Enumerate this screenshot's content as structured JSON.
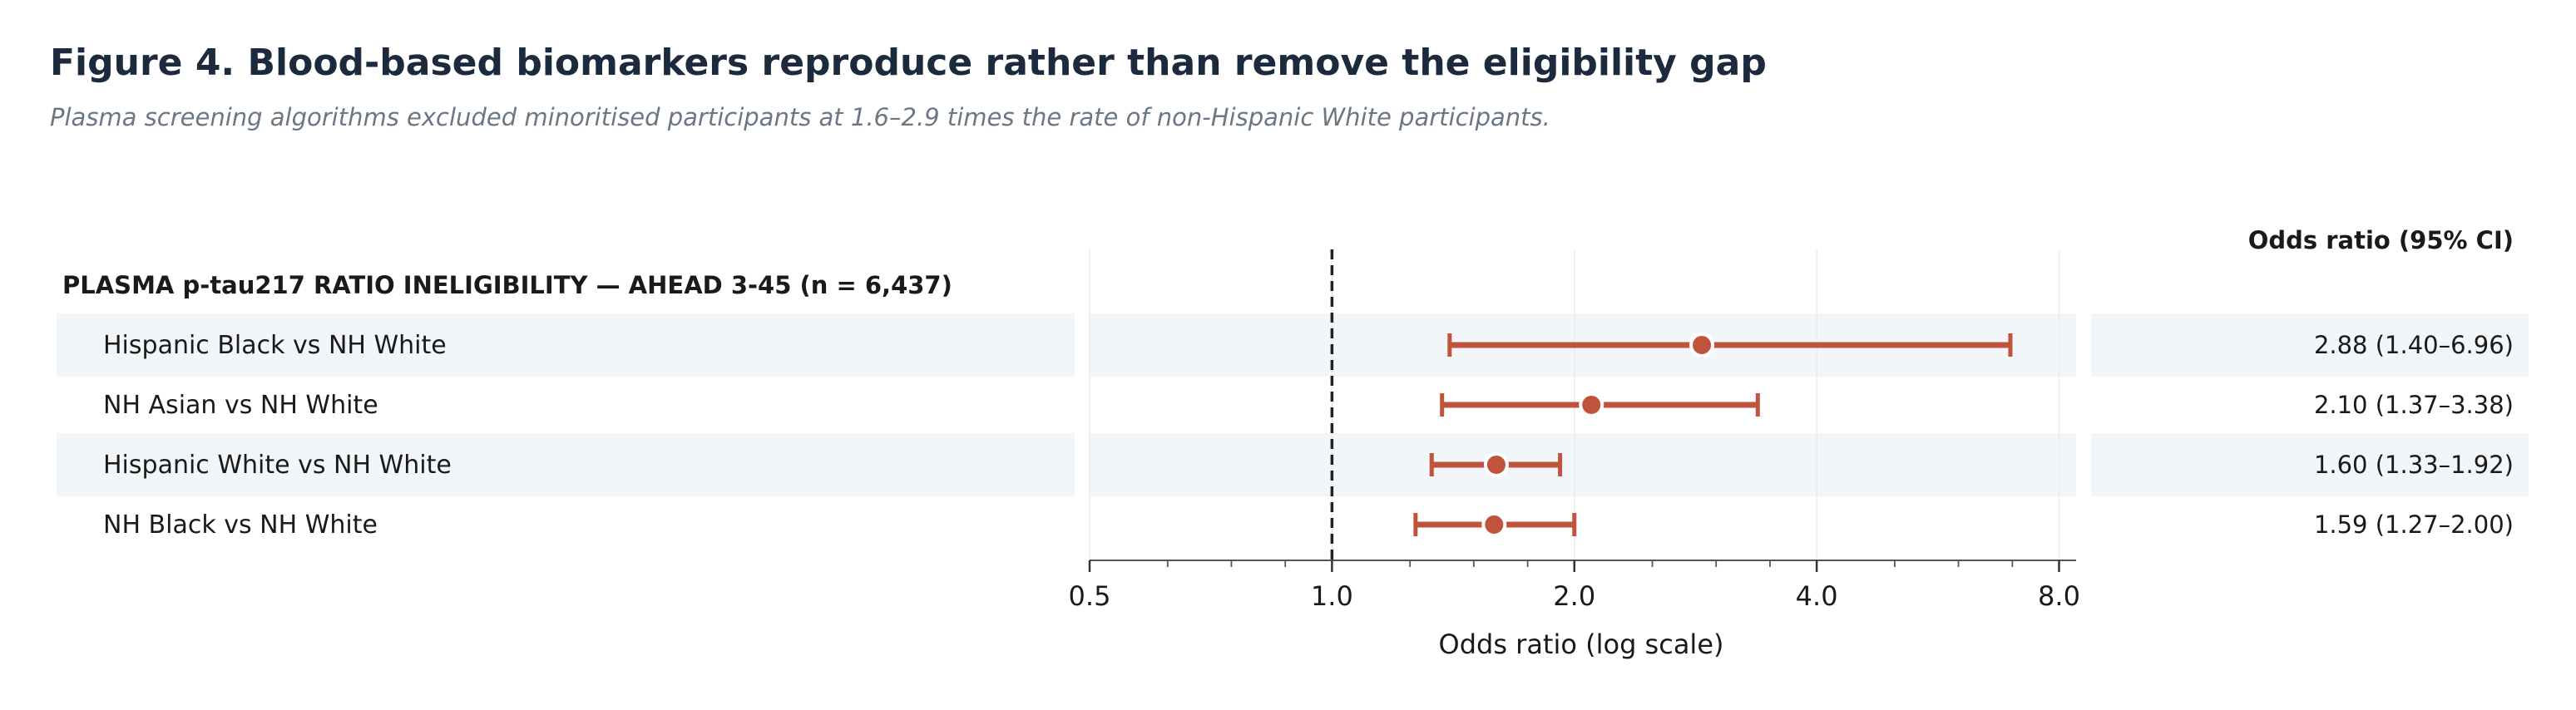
{
  "figure": {
    "title": "Figure 4.  Blood-based biomarkers reproduce rather than remove the eligibility gap",
    "subtitle": "Plasma screening algorithms excluded minoritised participants at 1.6–2.9 times the rate of non-Hispanic White participants."
  },
  "chart_data": {
    "type": "forest",
    "group_label": "PLASMA p-tau217 RATIO INELIGIBILITY — AHEAD 3-45 (n = 6,437)",
    "ci_header": "Odds ratio (95% CI)",
    "xlabel": "Odds ratio (log scale)",
    "x_scale": "log2",
    "xlim": [
      0.5,
      8.4
    ],
    "xticks": [
      0.5,
      1.0,
      2.0,
      4.0,
      8.0
    ],
    "xtick_labels": [
      "0.5",
      "1.0",
      "2.0",
      "4.0",
      "8.0"
    ],
    "reference_line": 1.0,
    "grid": true,
    "colors": {
      "marker": "#c0533b",
      "text": "#1b2a3d",
      "stripe": "#f3f6f9",
      "reference": "#222222"
    },
    "rows": [
      {
        "label": "Hispanic Black vs NH White",
        "or": 2.88,
        "lo": 1.4,
        "hi": 6.96,
        "ci_text": "2.88  (1.40–6.96)"
      },
      {
        "label": "NH Asian vs NH White",
        "or": 2.1,
        "lo": 1.37,
        "hi": 3.38,
        "ci_text": "2.10  (1.37–3.38)"
      },
      {
        "label": "Hispanic White vs NH White",
        "or": 1.6,
        "lo": 1.33,
        "hi": 1.92,
        "ci_text": "1.60  (1.33–1.92)"
      },
      {
        "label": "NH Black vs NH White",
        "or": 1.59,
        "lo": 1.27,
        "hi": 2.0,
        "ci_text": "1.59  (1.27–2.00)"
      }
    ]
  }
}
